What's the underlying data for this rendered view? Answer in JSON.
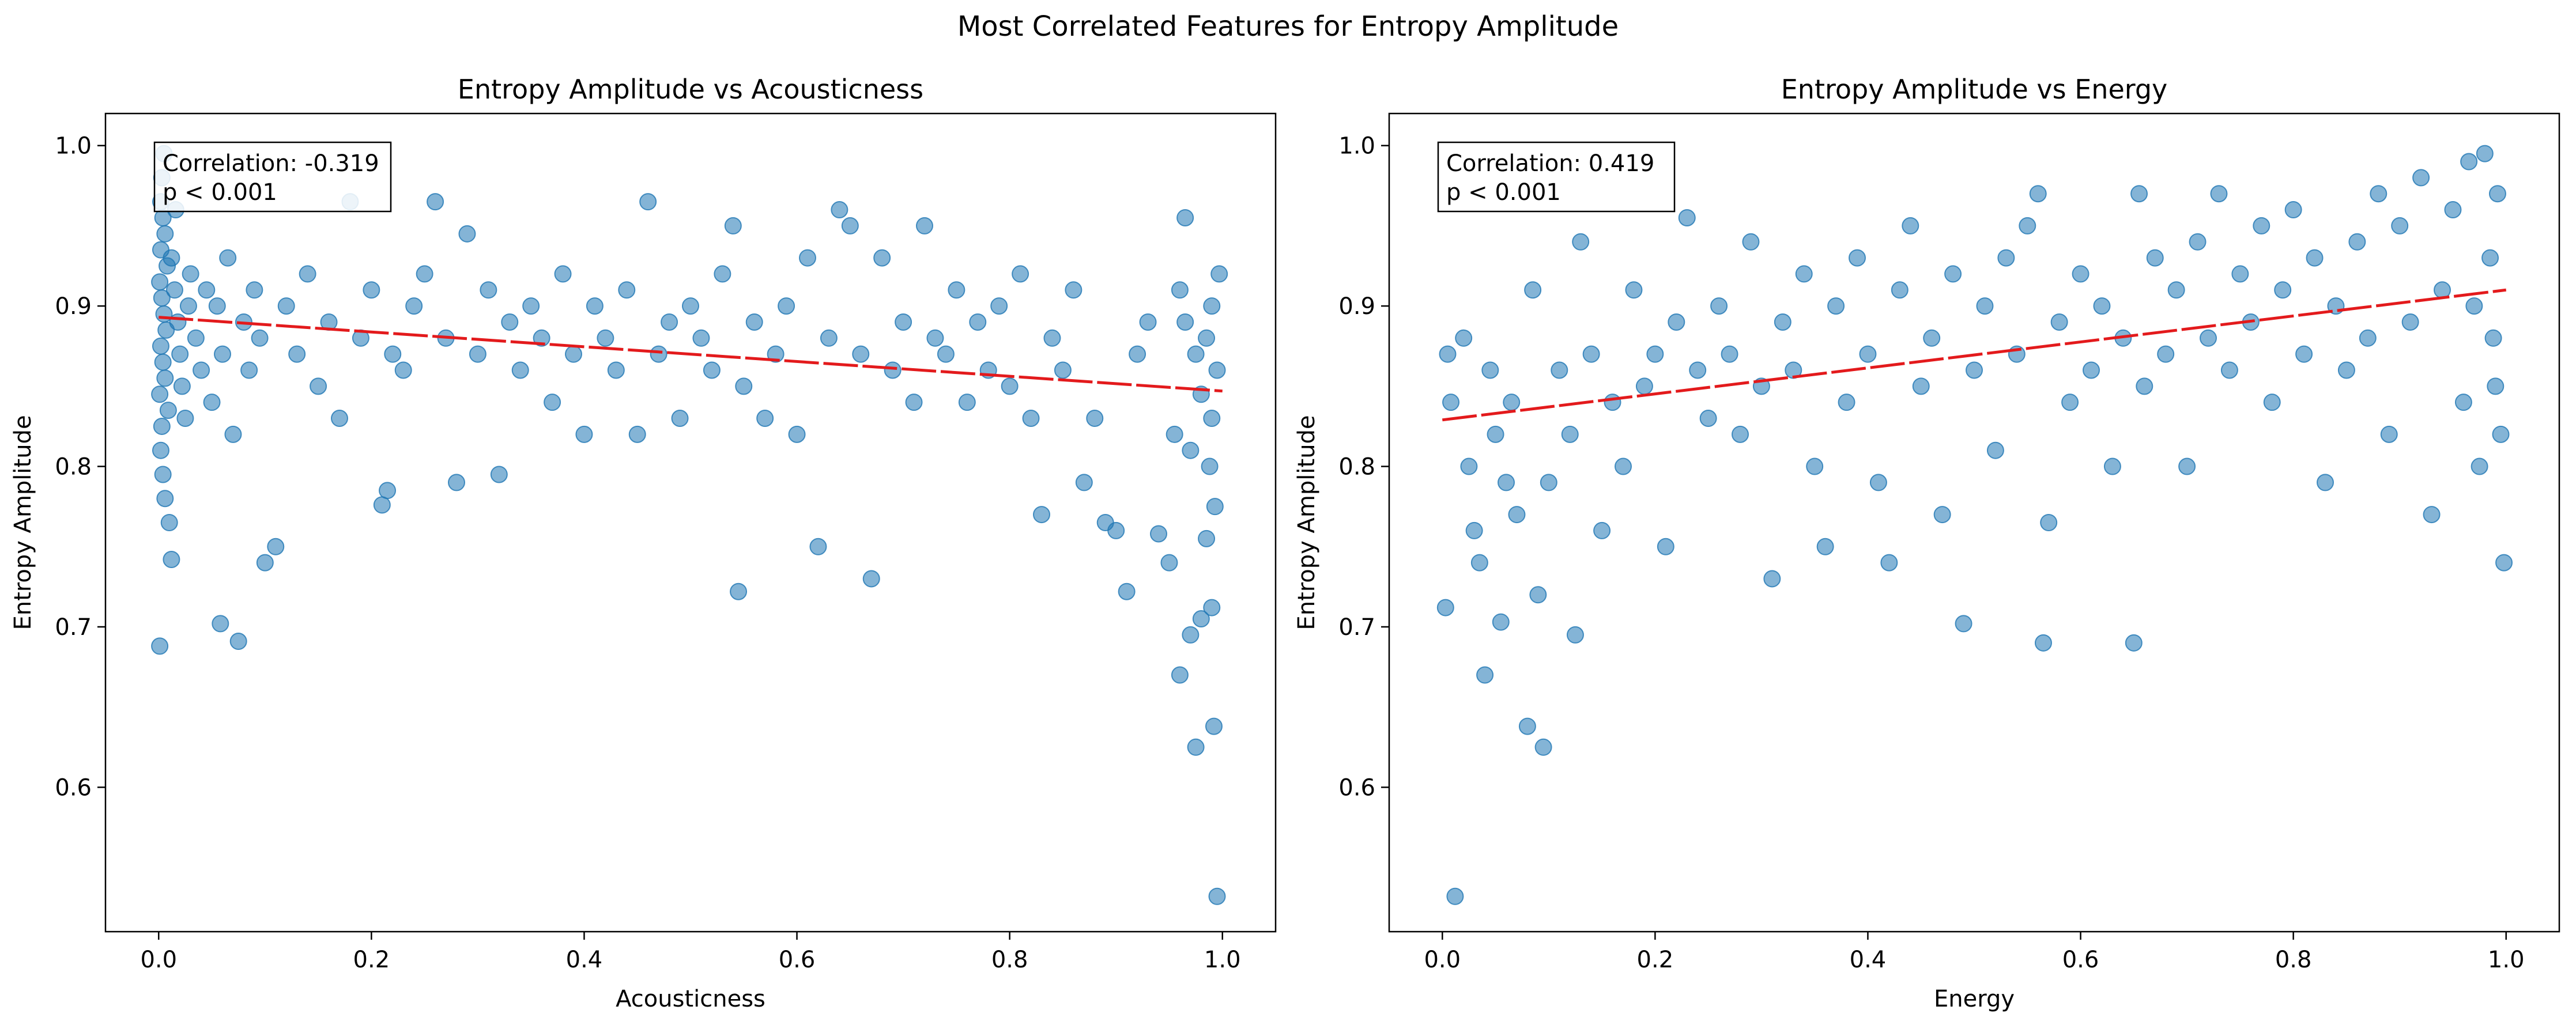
{
  "figure": {
    "suptitle": "Most Correlated Features for Entropy Amplitude"
  },
  "style": {
    "point_color": "#1f77b4",
    "point_opacity": 0.55,
    "trend_color": "#e31a1c",
    "axis_color": "#000000"
  },
  "chart_data": [
    {
      "type": "scatter",
      "title": "Entropy Amplitude vs Acousticness",
      "xlabel": "Acousticness",
      "ylabel": "Entropy Amplitude",
      "xlim": [
        -0.05,
        1.05
      ],
      "ylim": [
        0.51,
        1.02
      ],
      "xticks": [
        0.0,
        0.2,
        0.4,
        0.6,
        0.8,
        1.0
      ],
      "xtick_labels": [
        "0.0",
        "0.2",
        "0.4",
        "0.6",
        "0.8",
        "1.0"
      ],
      "yticks": [
        0.6,
        0.7,
        0.8,
        0.9,
        1.0
      ],
      "ytick_labels": [
        "0.6",
        "0.7",
        "0.8",
        "0.9",
        "1.0"
      ],
      "grid": false,
      "annotation": {
        "correlation": "Correlation: -0.319",
        "pvalue": "p < 0.001",
        "position": "top-left"
      },
      "trendline": {
        "x": [
          0.0,
          1.0
        ],
        "y": [
          0.893,
          0.847
        ]
      },
      "points": [
        [
          0.001,
          0.688
        ],
        [
          0.005,
          0.995
        ],
        [
          0.003,
          0.98
        ],
        [
          0.002,
          0.965
        ],
        [
          0.004,
          0.955
        ],
        [
          0.006,
          0.945
        ],
        [
          0.002,
          0.935
        ],
        [
          0.008,
          0.925
        ],
        [
          0.001,
          0.915
        ],
        [
          0.003,
          0.905
        ],
        [
          0.005,
          0.895
        ],
        [
          0.007,
          0.885
        ],
        [
          0.002,
          0.875
        ],
        [
          0.004,
          0.865
        ],
        [
          0.006,
          0.855
        ],
        [
          0.001,
          0.845
        ],
        [
          0.009,
          0.835
        ],
        [
          0.003,
          0.825
        ],
        [
          0.002,
          0.81
        ],
        [
          0.004,
          0.795
        ],
        [
          0.006,
          0.78
        ],
        [
          0.01,
          0.765
        ],
        [
          0.012,
          0.742
        ],
        [
          0.015,
          0.91
        ],
        [
          0.018,
          0.89
        ],
        [
          0.02,
          0.87
        ],
        [
          0.012,
          0.93
        ],
        [
          0.016,
          0.96
        ],
        [
          0.022,
          0.85
        ],
        [
          0.025,
          0.83
        ],
        [
          0.03,
          0.92
        ],
        [
          0.028,
          0.9
        ],
        [
          0.035,
          0.88
        ],
        [
          0.04,
          0.86
        ],
        [
          0.045,
          0.91
        ],
        [
          0.05,
          0.84
        ],
        [
          0.055,
          0.9
        ],
        [
          0.06,
          0.87
        ],
        [
          0.065,
          0.93
        ],
        [
          0.058,
          0.702
        ],
        [
          0.07,
          0.82
        ],
        [
          0.075,
          0.691
        ],
        [
          0.08,
          0.89
        ],
        [
          0.085,
          0.86
        ],
        [
          0.09,
          0.91
        ],
        [
          0.1,
          0.74
        ],
        [
          0.11,
          0.75
        ],
        [
          0.095,
          0.88
        ],
        [
          0.12,
          0.9
        ],
        [
          0.13,
          0.87
        ],
        [
          0.14,
          0.92
        ],
        [
          0.15,
          0.85
        ],
        [
          0.16,
          0.89
        ],
        [
          0.17,
          0.83
        ],
        [
          0.18,
          0.965
        ],
        [
          0.19,
          0.88
        ],
        [
          0.2,
          0.91
        ],
        [
          0.21,
          0.776
        ],
        [
          0.215,
          0.785
        ],
        [
          0.22,
          0.87
        ],
        [
          0.23,
          0.86
        ],
        [
          0.24,
          0.9
        ],
        [
          0.25,
          0.92
        ],
        [
          0.26,
          0.965
        ],
        [
          0.27,
          0.88
        ],
        [
          0.28,
          0.79
        ],
        [
          0.29,
          0.945
        ],
        [
          0.3,
          0.87
        ],
        [
          0.31,
          0.91
        ],
        [
          0.32,
          0.795
        ],
        [
          0.33,
          0.89
        ],
        [
          0.34,
          0.86
        ],
        [
          0.35,
          0.9
        ],
        [
          0.36,
          0.88
        ],
        [
          0.37,
          0.84
        ],
        [
          0.38,
          0.92
        ],
        [
          0.39,
          0.87
        ],
        [
          0.4,
          0.82
        ],
        [
          0.41,
          0.9
        ],
        [
          0.42,
          0.88
        ],
        [
          0.43,
          0.86
        ],
        [
          0.44,
          0.91
        ],
        [
          0.45,
          0.82
        ],
        [
          0.46,
          0.965
        ],
        [
          0.47,
          0.87
        ],
        [
          0.48,
          0.89
        ],
        [
          0.49,
          0.83
        ],
        [
          0.5,
          0.9
        ],
        [
          0.51,
          0.88
        ],
        [
          0.52,
          0.86
        ],
        [
          0.53,
          0.92
        ],
        [
          0.54,
          0.95
        ],
        [
          0.545,
          0.722
        ],
        [
          0.55,
          0.85
        ],
        [
          0.56,
          0.89
        ],
        [
          0.57,
          0.83
        ],
        [
          0.58,
          0.87
        ],
        [
          0.59,
          0.9
        ],
        [
          0.6,
          0.82
        ],
        [
          0.61,
          0.93
        ],
        [
          0.62,
          0.75
        ],
        [
          0.63,
          0.88
        ],
        [
          0.64,
          0.96
        ],
        [
          0.65,
          0.95
        ],
        [
          0.66,
          0.87
        ],
        [
          0.67,
          0.73
        ],
        [
          0.68,
          0.93
        ],
        [
          0.69,
          0.86
        ],
        [
          0.7,
          0.89
        ],
        [
          0.71,
          0.84
        ],
        [
          0.72,
          0.95
        ],
        [
          0.73,
          0.88
        ],
        [
          0.74,
          0.87
        ],
        [
          0.75,
          0.91
        ],
        [
          0.76,
          0.84
        ],
        [
          0.77,
          0.89
        ],
        [
          0.78,
          0.86
        ],
        [
          0.79,
          0.9
        ],
        [
          0.8,
          0.85
        ],
        [
          0.81,
          0.92
        ],
        [
          0.82,
          0.83
        ],
        [
          0.83,
          0.77
        ],
        [
          0.84,
          0.88
        ],
        [
          0.85,
          0.86
        ],
        [
          0.86,
          0.91
        ],
        [
          0.87,
          0.79
        ],
        [
          0.88,
          0.83
        ],
        [
          0.89,
          0.765
        ],
        [
          0.9,
          0.76
        ],
        [
          0.91,
          0.722
        ],
        [
          0.92,
          0.87
        ],
        [
          0.93,
          0.89
        ],
        [
          0.94,
          0.758
        ],
        [
          0.95,
          0.74
        ],
        [
          0.955,
          0.82
        ],
        [
          0.96,
          0.67
        ],
        [
          0.965,
          0.955
        ],
        [
          0.97,
          0.695
        ],
        [
          0.975,
          0.625
        ],
        [
          0.98,
          0.705
        ],
        [
          0.985,
          0.755
        ],
        [
          0.99,
          0.712
        ],
        [
          0.992,
          0.638
        ],
        [
          0.995,
          0.532
        ],
        [
          0.993,
          0.775
        ],
        [
          0.988,
          0.8
        ],
        [
          0.99,
          0.83
        ],
        [
          0.995,
          0.86
        ],
        [
          0.985,
          0.88
        ],
        [
          0.99,
          0.9
        ],
        [
          0.997,
          0.92
        ],
        [
          0.98,
          0.845
        ],
        [
          0.975,
          0.87
        ],
        [
          0.97,
          0.81
        ],
        [
          0.965,
          0.89
        ],
        [
          0.96,
          0.91
        ]
      ]
    },
    {
      "type": "scatter",
      "title": "Entropy Amplitude vs Energy",
      "xlabel": "Energy",
      "ylabel": "Entropy Amplitude",
      "xlim": [
        -0.05,
        1.05
      ],
      "ylim": [
        0.51,
        1.02
      ],
      "xticks": [
        0.0,
        0.2,
        0.4,
        0.6,
        0.8,
        1.0
      ],
      "xtick_labels": [
        "0.0",
        "0.2",
        "0.4",
        "0.6",
        "0.8",
        "1.0"
      ],
      "yticks": [
        0.6,
        0.7,
        0.8,
        0.9,
        1.0
      ],
      "ytick_labels": [
        "0.6",
        "0.7",
        "0.8",
        "0.9",
        "1.0"
      ],
      "grid": false,
      "annotation": {
        "correlation": "Correlation: 0.419",
        "pvalue": "p < 0.001",
        "position": "top-left"
      },
      "trendline": {
        "x": [
          0.0,
          1.0
        ],
        "y": [
          0.829,
          0.91
        ]
      },
      "points": [
        [
          0.003,
          0.712
        ],
        [
          0.005,
          0.87
        ],
        [
          0.008,
          0.84
        ],
        [
          0.012,
          0.532
        ],
        [
          0.02,
          0.88
        ],
        [
          0.025,
          0.8
        ],
        [
          0.03,
          0.76
        ],
        [
          0.035,
          0.74
        ],
        [
          0.04,
          0.67
        ],
        [
          0.045,
          0.86
        ],
        [
          0.05,
          0.82
        ],
        [
          0.055,
          0.703
        ],
        [
          0.06,
          0.79
        ],
        [
          0.065,
          0.84
        ],
        [
          0.07,
          0.77
        ],
        [
          0.08,
          0.638
        ],
        [
          0.085,
          0.91
        ],
        [
          0.09,
          0.72
        ],
        [
          0.095,
          0.625
        ],
        [
          0.1,
          0.79
        ],
        [
          0.11,
          0.86
        ],
        [
          0.12,
          0.82
        ],
        [
          0.125,
          0.695
        ],
        [
          0.13,
          0.94
        ],
        [
          0.14,
          0.87
        ],
        [
          0.15,
          0.76
        ],
        [
          0.16,
          0.84
        ],
        [
          0.17,
          0.8
        ],
        [
          0.18,
          0.91
        ],
        [
          0.19,
          0.85
        ],
        [
          0.2,
          0.87
        ],
        [
          0.21,
          0.75
        ],
        [
          0.22,
          0.89
        ],
        [
          0.23,
          0.955
        ],
        [
          0.24,
          0.86
        ],
        [
          0.25,
          0.83
        ],
        [
          0.26,
          0.9
        ],
        [
          0.27,
          0.87
        ],
        [
          0.28,
          0.82
        ],
        [
          0.29,
          0.94
        ],
        [
          0.3,
          0.85
        ],
        [
          0.31,
          0.73
        ],
        [
          0.32,
          0.89
        ],
        [
          0.33,
          0.86
        ],
        [
          0.34,
          0.92
        ],
        [
          0.35,
          0.8
        ],
        [
          0.36,
          0.75
        ],
        [
          0.37,
          0.9
        ],
        [
          0.38,
          0.84
        ],
        [
          0.39,
          0.93
        ],
        [
          0.4,
          0.87
        ],
        [
          0.41,
          0.79
        ],
        [
          0.42,
          0.74
        ],
        [
          0.43,
          0.91
        ],
        [
          0.44,
          0.95
        ],
        [
          0.45,
          0.85
        ],
        [
          0.46,
          0.88
        ],
        [
          0.47,
          0.77
        ],
        [
          0.48,
          0.92
        ],
        [
          0.49,
          0.702
        ],
        [
          0.5,
          0.86
        ],
        [
          0.51,
          0.9
        ],
        [
          0.52,
          0.81
        ],
        [
          0.53,
          0.93
        ],
        [
          0.54,
          0.87
        ],
        [
          0.55,
          0.95
        ],
        [
          0.56,
          0.97
        ],
        [
          0.565,
          0.69
        ],
        [
          0.57,
          0.765
        ],
        [
          0.58,
          0.89
        ],
        [
          0.59,
          0.84
        ],
        [
          0.6,
          0.92
        ],
        [
          0.61,
          0.86
        ],
        [
          0.62,
          0.9
        ],
        [
          0.63,
          0.8
        ],
        [
          0.64,
          0.88
        ],
        [
          0.65,
          0.69
        ],
        [
          0.655,
          0.97
        ],
        [
          0.66,
          0.85
        ],
        [
          0.67,
          0.93
        ],
        [
          0.68,
          0.87
        ],
        [
          0.69,
          0.91
        ],
        [
          0.7,
          0.8
        ],
        [
          0.71,
          0.94
        ],
        [
          0.72,
          0.88
        ],
        [
          0.73,
          0.97
        ],
        [
          0.74,
          0.86
        ],
        [
          0.75,
          0.92
        ],
        [
          0.76,
          0.89
        ],
        [
          0.77,
          0.95
        ],
        [
          0.78,
          0.84
        ],
        [
          0.79,
          0.91
        ],
        [
          0.8,
          0.96
        ],
        [
          0.81,
          0.87
        ],
        [
          0.82,
          0.93
        ],
        [
          0.83,
          0.79
        ],
        [
          0.84,
          0.9
        ],
        [
          0.85,
          0.86
        ],
        [
          0.86,
          0.94
        ],
        [
          0.87,
          0.88
        ],
        [
          0.88,
          0.97
        ],
        [
          0.89,
          0.82
        ],
        [
          0.9,
          0.95
        ],
        [
          0.91,
          0.89
        ],
        [
          0.92,
          0.98
        ],
        [
          0.93,
          0.77
        ],
        [
          0.94,
          0.91
        ],
        [
          0.95,
          0.96
        ],
        [
          0.96,
          0.84
        ],
        [
          0.965,
          0.99
        ],
        [
          0.97,
          0.9
        ],
        [
          0.975,
          0.8
        ],
        [
          0.98,
          0.995
        ],
        [
          0.985,
          0.93
        ],
        [
          0.99,
          0.85
        ],
        [
          0.995,
          0.82
        ],
        [
          0.998,
          0.74
        ],
        [
          0.992,
          0.97
        ],
        [
          0.988,
          0.88
        ]
      ]
    }
  ]
}
